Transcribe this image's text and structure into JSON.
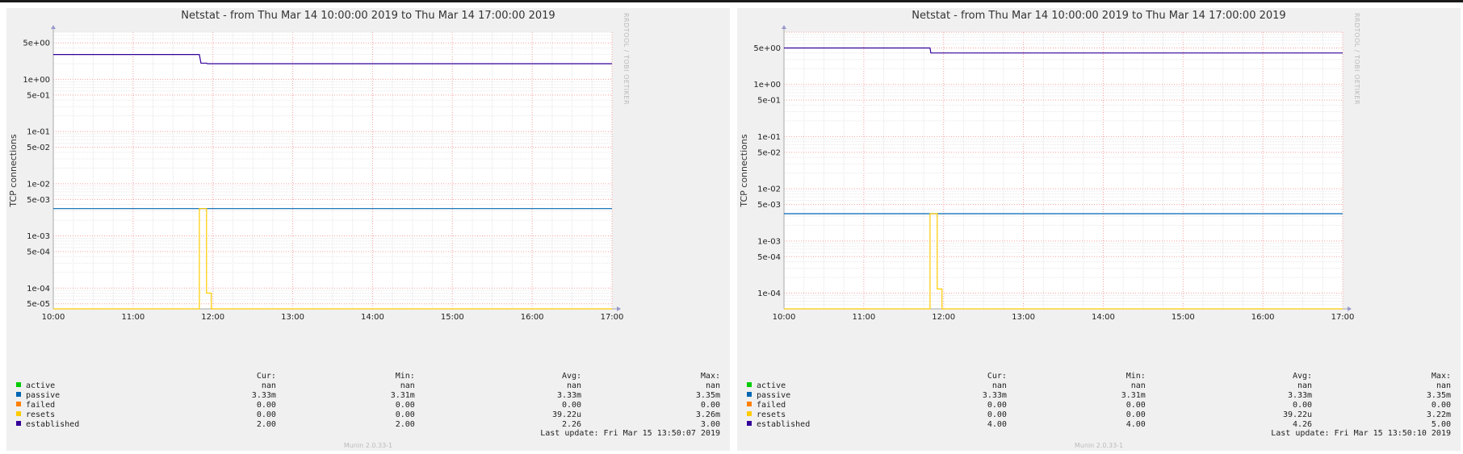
{
  "chart_data": [
    {
      "type": "line",
      "title": "Netstat - from Thu Mar 14 10:00:00 2019 to Thu Mar 14 17:00:00 2019",
      "ylabel": "TCP connections",
      "y_scale": "log",
      "ylim": [
        4e-05,
        8
      ],
      "y_ticks": [
        {
          "v": 5,
          "label": "5e+00"
        },
        {
          "v": 1,
          "label": "1e+00"
        },
        {
          "v": 0.5,
          "label": "5e-01"
        },
        {
          "v": 0.1,
          "label": "1e-01"
        },
        {
          "v": 0.05,
          "label": "5e-02"
        },
        {
          "v": 0.01,
          "label": "1e-02"
        },
        {
          "v": 0.005,
          "label": "5e-03"
        },
        {
          "v": 0.001,
          "label": "1e-03"
        },
        {
          "v": 0.0005,
          "label": "5e-04"
        },
        {
          "v": 0.0001,
          "label": "1e-04"
        },
        {
          "v": 5e-05,
          "label": "5e-05"
        }
      ],
      "x_ticks": [
        "10:00",
        "11:00",
        "12:00",
        "13:00",
        "14:00",
        "15:00",
        "16:00",
        "17:00"
      ],
      "grid": true,
      "series": [
        {
          "name": "passive",
          "color": "#0066b3",
          "x": [
            10.0,
            17.0
          ],
          "y": [
            0.00333,
            0.00333
          ]
        },
        {
          "name": "resets",
          "color": "#ffcc00",
          "x": [
            10.0,
            11.83,
            11.83,
            11.92,
            11.92,
            11.98,
            11.98,
            17.0
          ],
          "y": [
            4e-05,
            4e-05,
            0.00333,
            0.00333,
            8e-05,
            8e-05,
            4e-05,
            4e-05
          ]
        },
        {
          "name": "established",
          "color": "#330099",
          "x": [
            10.0,
            11.83,
            11.85,
            11.92,
            11.93,
            17.0
          ],
          "y": [
            3.0,
            3.0,
            2.05,
            2.05,
            2.0,
            2.0
          ]
        }
      ],
      "legend": {
        "headers": {
          "cur": "Cur:",
          "min": "Min:",
          "avg": "Avg:",
          "max": "Max:"
        },
        "rows": [
          {
            "name": "active",
            "color": "#00cc00",
            "cur": "nan",
            "min": "nan",
            "avg": "nan",
            "max": "nan"
          },
          {
            "name": "passive",
            "color": "#0066b3",
            "cur": "3.33m",
            "min": "3.31m",
            "avg": "3.33m",
            "max": "3.35m"
          },
          {
            "name": "failed",
            "color": "#ff8000",
            "cur": "0.00",
            "min": "0.00",
            "avg": "0.00",
            "max": "0.00"
          },
          {
            "name": "resets",
            "color": "#ffcc00",
            "cur": "0.00",
            "min": "0.00",
            "avg": "39.22u",
            "max": "3.26m"
          },
          {
            "name": "established",
            "color": "#330099",
            "cur": "2.00",
            "min": "2.00",
            "avg": "2.26",
            "max": "3.00"
          }
        ]
      },
      "side_label": "RRDTOOL / TOBI OETIKER",
      "last_update": "Last update: Fri Mar 15 13:50:07 2019",
      "credit": "Munin 2.0.33-1"
    },
    {
      "type": "line",
      "title": "Netstat - from Thu Mar 14 10:00:00 2019 to Thu Mar 14 17:00:00 2019",
      "ylabel": "TCP connections",
      "y_scale": "log",
      "ylim": [
        5e-05,
        10
      ],
      "y_ticks": [
        {
          "v": 5,
          "label": "5e+00"
        },
        {
          "v": 1,
          "label": "1e+00"
        },
        {
          "v": 0.5,
          "label": "5e-01"
        },
        {
          "v": 0.1,
          "label": "1e-01"
        },
        {
          "v": 0.05,
          "label": "5e-02"
        },
        {
          "v": 0.01,
          "label": "1e-02"
        },
        {
          "v": 0.005,
          "label": "5e-03"
        },
        {
          "v": 0.001,
          "label": "1e-03"
        },
        {
          "v": 0.0005,
          "label": "5e-04"
        },
        {
          "v": 0.0001,
          "label": "1e-04"
        }
      ],
      "x_ticks": [
        "10:00",
        "11:00",
        "12:00",
        "13:00",
        "14:00",
        "15:00",
        "16:00",
        "17:00"
      ],
      "grid": true,
      "series": [
        {
          "name": "passive",
          "color": "#0066b3",
          "x": [
            10.0,
            17.0
          ],
          "y": [
            0.00333,
            0.00333
          ]
        },
        {
          "name": "resets",
          "color": "#ffcc00",
          "x": [
            10.0,
            11.83,
            11.83,
            11.92,
            11.92,
            11.98,
            11.98,
            17.0
          ],
          "y": [
            5e-05,
            5e-05,
            0.00333,
            0.00333,
            0.00012,
            0.00012,
            5e-05,
            5e-05
          ]
        },
        {
          "name": "established",
          "color": "#330099",
          "x": [
            10.0,
            11.83,
            11.84,
            17.0
          ],
          "y": [
            5.0,
            5.0,
            4.0,
            4.0
          ]
        }
      ],
      "legend": {
        "headers": {
          "cur": "Cur:",
          "min": "Min:",
          "avg": "Avg:",
          "max": "Max:"
        },
        "rows": [
          {
            "name": "active",
            "color": "#00cc00",
            "cur": "nan",
            "min": "nan",
            "avg": "nan",
            "max": "nan"
          },
          {
            "name": "passive",
            "color": "#0066b3",
            "cur": "3.33m",
            "min": "3.31m",
            "avg": "3.33m",
            "max": "3.35m"
          },
          {
            "name": "failed",
            "color": "#ff8000",
            "cur": "0.00",
            "min": "0.00",
            "avg": "0.00",
            "max": "0.00"
          },
          {
            "name": "resets",
            "color": "#ffcc00",
            "cur": "0.00",
            "min": "0.00",
            "avg": "39.22u",
            "max": "3.22m"
          },
          {
            "name": "established",
            "color": "#330099",
            "cur": "4.00",
            "min": "4.00",
            "avg": "4.26",
            "max": "5.00"
          }
        ]
      },
      "side_label": "RRDTOOL / TOBI OETIKER",
      "last_update": "Last update: Fri Mar 15 13:50:10 2019",
      "credit": "Munin 2.0.33-1"
    }
  ]
}
